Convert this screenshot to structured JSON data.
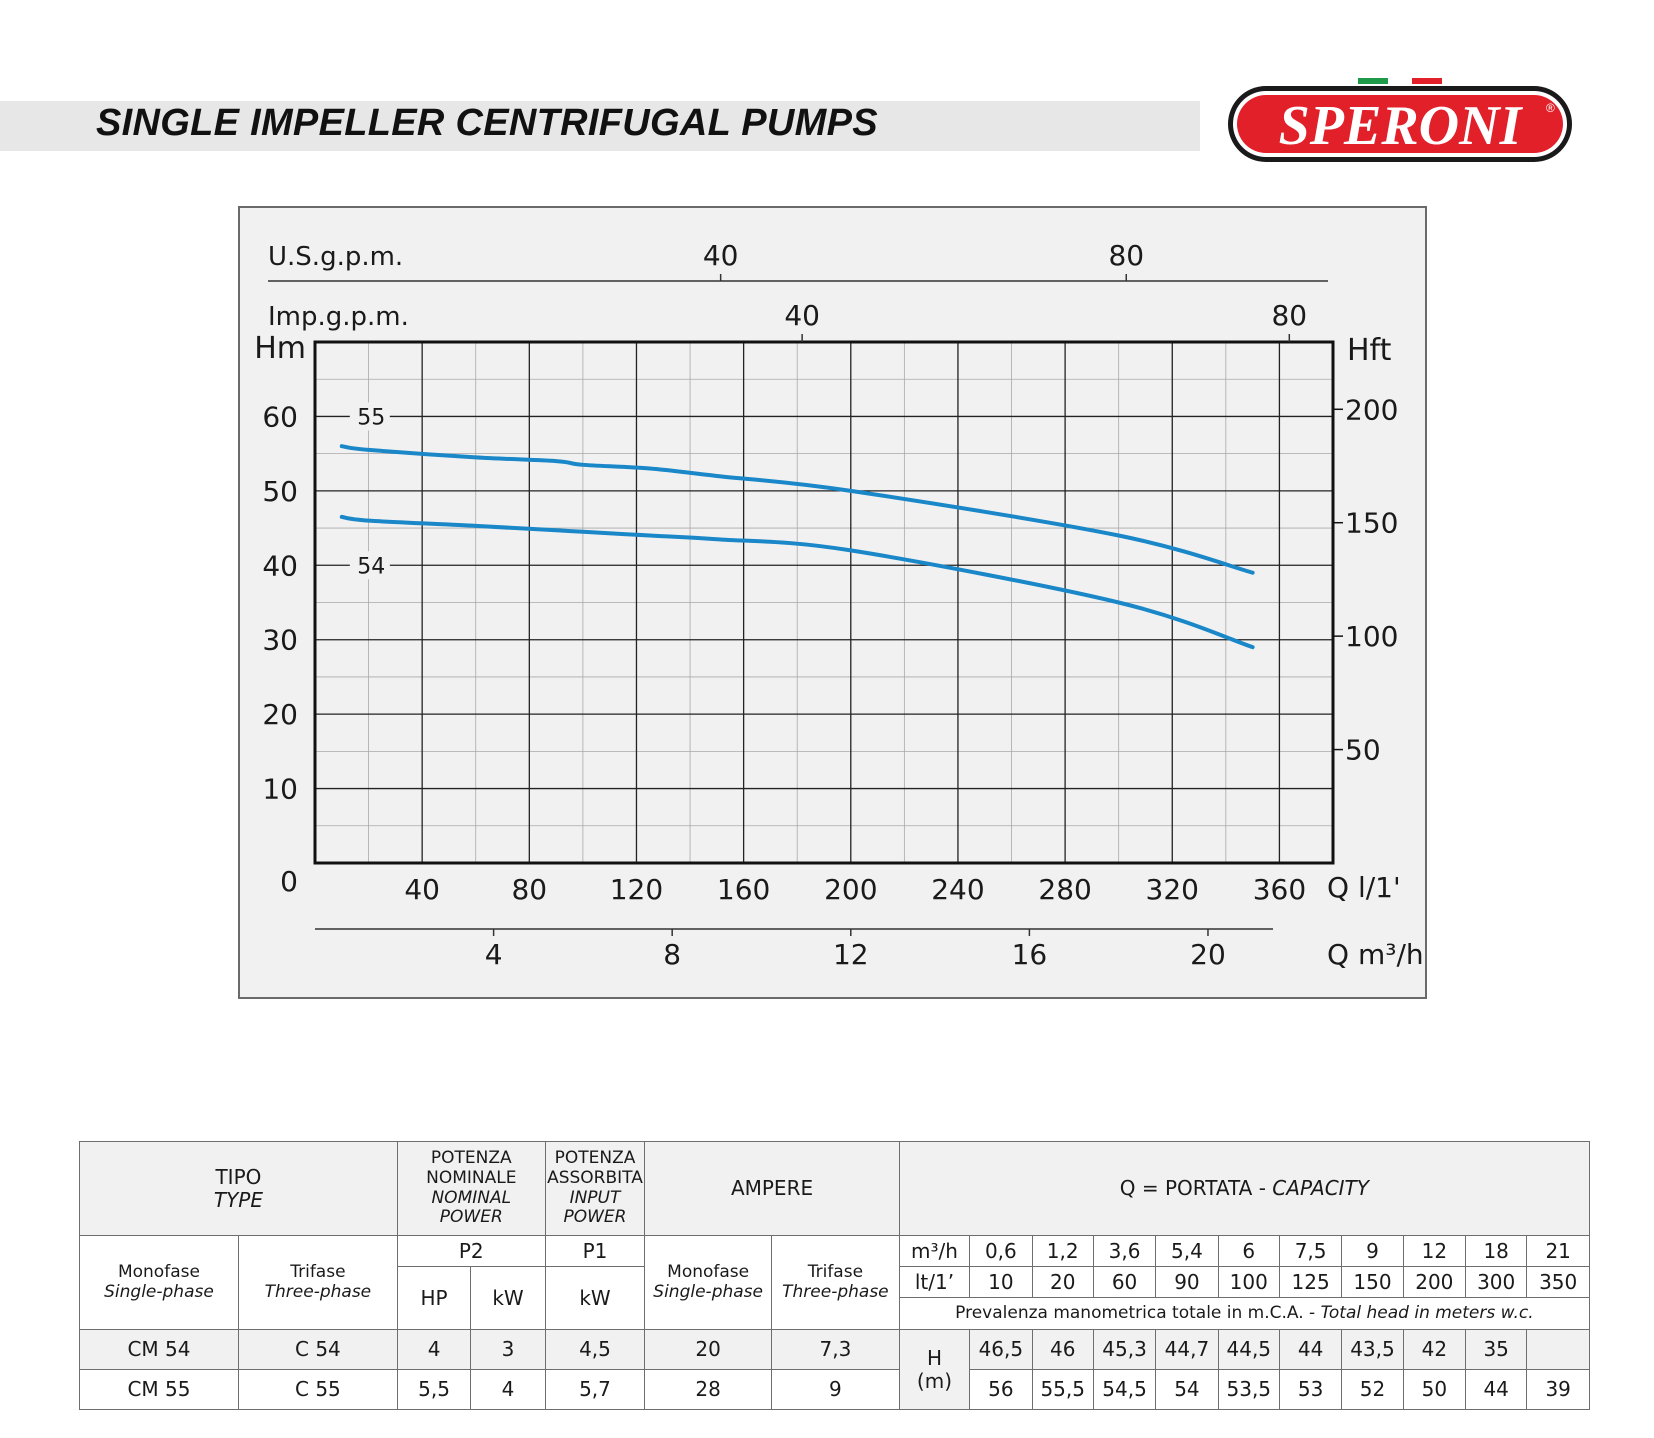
{
  "header": {
    "title": "SINGLE IMPELLER CENTRIFUGAL PUMPS"
  },
  "logo": {
    "text": "SPERONI",
    "reg": "®",
    "colors": {
      "red": "#e2202a",
      "green": "#1f9a48",
      "dark": "#1a1a1a"
    }
  },
  "chart_data": {
    "type": "line",
    "x": [
      10,
      20,
      60,
      90,
      100,
      125,
      150,
      200,
      300,
      350
    ],
    "x_unit": "l/1'",
    "series": [
      {
        "name": "55",
        "values": [
          56,
          55.5,
          54.5,
          54,
          53.5,
          53,
          52,
          50,
          44,
          39
        ],
        "color": "#1a87c8"
      },
      {
        "name": "54",
        "values": [
          46.5,
          46,
          45.3,
          44.7,
          44.5,
          44,
          43.5,
          42,
          35,
          29
        ],
        "color": "#1a87c8"
      }
    ],
    "xlim": [
      0,
      380
    ],
    "ylim": [
      0,
      70
    ],
    "grid": true,
    "axes": {
      "left": {
        "label": "Hm",
        "ticks": [
          "0",
          "10",
          "20",
          "30",
          "40",
          "50",
          "60"
        ],
        "values": [
          0,
          10,
          20,
          30,
          40,
          50,
          60
        ]
      },
      "right": {
        "label": "Hft",
        "ticks": [
          "50",
          "100",
          "150",
          "200"
        ],
        "values_m": [
          15.24,
          30.48,
          45.72,
          60.96
        ]
      },
      "bottom": {
        "label": "Q l/1'",
        "ticks": [
          "40",
          "80",
          "120",
          "160",
          "200",
          "240",
          "280",
          "320",
          "360"
        ],
        "values": [
          40,
          80,
          120,
          160,
          200,
          240,
          280,
          320,
          360
        ]
      },
      "bottom2": {
        "label": "Q m³/h",
        "ticks": [
          "4",
          "8",
          "12",
          "16",
          "20"
        ],
        "values_lmin": [
          66.67,
          133.33,
          200,
          266.67,
          333.33
        ]
      },
      "top_imp": {
        "label": "Imp.g.p.m.",
        "ticks": [
          "40",
          "80"
        ],
        "values_lmin": [
          181.84,
          363.69
        ]
      },
      "top_us": {
        "label": "U.S.g.p.m.",
        "ticks": [
          "40",
          "80"
        ],
        "values_lmin": [
          151.42,
          302.83
        ]
      }
    }
  },
  "table": {
    "tipo": "TIPO",
    "type": "TYPE",
    "potenza_nominale": "POTENZA",
    "potenza_nominale2": "NOMINALE",
    "nominal_power": "NOMINAL POWER",
    "potenza_assorbita": "POTENZA",
    "potenza_assorbita2": "ASSORBITA",
    "input_power": "INPUT",
    "input_power2": "POWER",
    "ampere": "AMPERE",
    "portata": "Q = PORTATA - ",
    "capacity": "CAPACITY",
    "monofase": "Monofase",
    "single_phase": "Single-phase",
    "trifase": "Trifase",
    "three_phase": "Three-phase",
    "p2": "P2",
    "p1": "P1",
    "hp": "HP",
    "kw": "kW",
    "kw2": "kW",
    "m3h": "m³/h",
    "lt": "lt/1’",
    "m3h_values": [
      "0,6",
      "1,2",
      "3,6",
      "5,4",
      "6",
      "7,5",
      "9",
      "12",
      "18",
      "21"
    ],
    "lt_values": [
      "10",
      "20",
      "60",
      "90",
      "100",
      "125",
      "150",
      "200",
      "300",
      "350"
    ],
    "prevalenza": "Prevalenza manometrica totale in m.C.A. - ",
    "total_head": "Total head in meters w.c.",
    "h_label": "H",
    "h_unit": "(m)",
    "rows": [
      {
        "mono": "CM 54",
        "tri": "C 54",
        "hp": "4",
        "kw": "3",
        "p1": "4,5",
        "amp_mono": "20",
        "amp_tri": "7,3",
        "h": [
          "46,5",
          "46",
          "45,3",
          "44,7",
          "44,5",
          "44",
          "43,5",
          "42",
          "35",
          ""
        ]
      },
      {
        "mono": "CM 55",
        "tri": "C 55",
        "hp": "5,5",
        "kw": "4",
        "p1": "5,7",
        "amp_mono": "28",
        "amp_tri": "9",
        "h": [
          "56",
          "55,5",
          "54,5",
          "54",
          "53,5",
          "53",
          "52",
          "50",
          "44",
          "39"
        ]
      }
    ]
  }
}
